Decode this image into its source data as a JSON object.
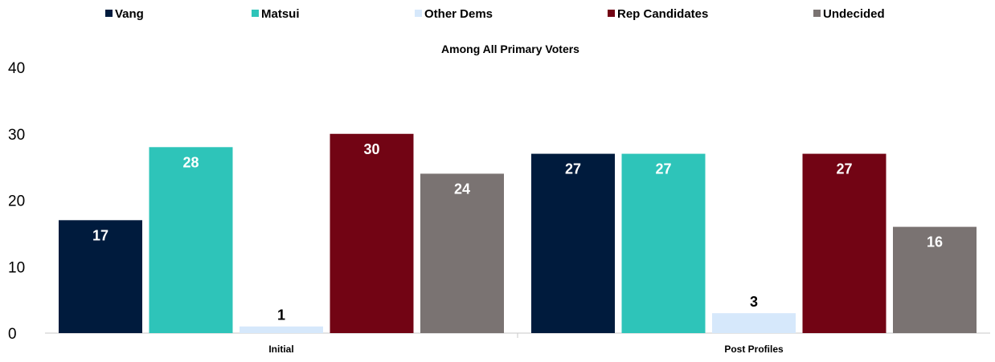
{
  "chart_data": {
    "type": "bar",
    "title": "Among All Primary Voters",
    "categories": [
      "Initial",
      "Post Profiles"
    ],
    "series": [
      {
        "name": "Vang",
        "values": [
          17,
          27
        ],
        "color": "#001b3d",
        "label_color": "#ffffff"
      },
      {
        "name": "Matsui",
        "values": [
          28,
          27
        ],
        "color": "#2ec4b9",
        "label_color": "#ffffff"
      },
      {
        "name": "Other Dems",
        "values": [
          1,
          3
        ],
        "color": "#d6e8fb",
        "label_color": "#000000"
      },
      {
        "name": "Rep Candidates",
        "values": [
          30,
          27
        ],
        "color": "#720414",
        "label_color": "#ffffff"
      },
      {
        "name": "Undecided",
        "values": [
          24,
          16
        ],
        "color": "#7a7372",
        "label_color": "#ffffff"
      }
    ],
    "ylim": [
      0,
      40
    ],
    "yticks": [
      "0",
      "10",
      "20",
      "30",
      "40"
    ],
    "grid": false,
    "legend_position": "top"
  }
}
